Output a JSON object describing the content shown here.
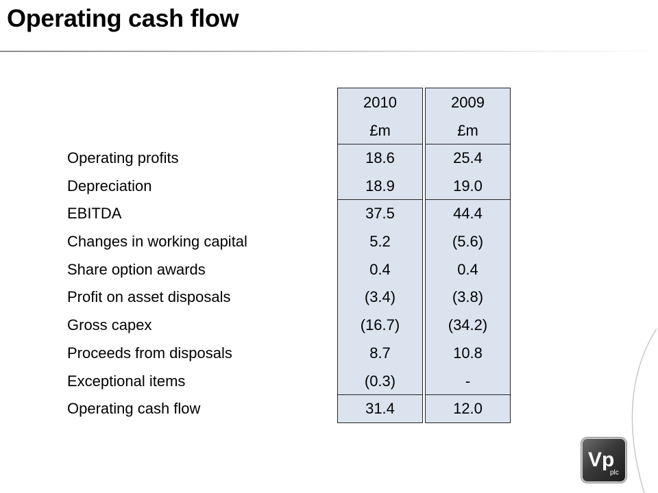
{
  "title": "Operating cash flow",
  "columns": [
    {
      "year": "2010",
      "unit": "£m"
    },
    {
      "year": "2009",
      "unit": "£m"
    }
  ],
  "rows": [
    {
      "label": "Operating profits",
      "v2010": "18.6",
      "v2009": "25.4"
    },
    {
      "label": "Depreciation",
      "v2010": "18.9",
      "v2009": "19.0"
    },
    {
      "label": "EBITDA",
      "v2010": "37.5",
      "v2009": "44.4"
    },
    {
      "label": "Changes in working capital",
      "v2010": "5.2",
      "v2009": "(5.6)"
    },
    {
      "label": "Share option awards",
      "v2010": "0.4",
      "v2009": "0.4"
    },
    {
      "label": "Profit on asset disposals",
      "v2010": "(3.4)",
      "v2009": "(3.8)"
    },
    {
      "label": "Gross capex",
      "v2010": "(16.7)",
      "v2009": "(34.2)"
    },
    {
      "label": "Proceeds from disposals",
      "v2010": "8.7",
      "v2009": "10.8"
    },
    {
      "label": "Exceptional items",
      "v2010": "(0.3)",
      "v2009": "-"
    },
    {
      "label": "Operating cash flow",
      "v2010": "31.4",
      "v2009": "12.0"
    }
  ],
  "logo": {
    "main": "Vp",
    "sub": "plc"
  }
}
